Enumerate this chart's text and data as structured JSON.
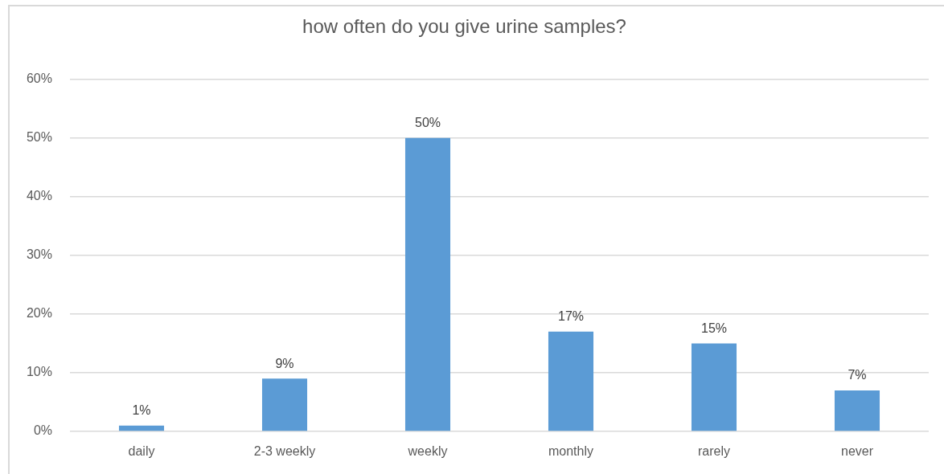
{
  "chart_data": {
    "type": "bar",
    "title": "how often do you give urine samples?",
    "categories": [
      "daily",
      "2-3 weekly",
      "weekly",
      "monthly",
      "rarely",
      "never"
    ],
    "values": [
      1,
      9,
      50,
      17,
      15,
      7
    ],
    "color": "#5b9bd5",
    "value_labels": [
      "1%",
      "9%",
      "50%",
      "17%",
      "15%",
      "7%"
    ],
    "ylim": [
      0,
      60
    ],
    "yticks": [
      {
        "value": 0,
        "label": "0%"
      },
      {
        "value": 10,
        "label": "10%"
      },
      {
        "value": 20,
        "label": "20%"
      },
      {
        "value": 30,
        "label": "30%"
      },
      {
        "value": 40,
        "label": "40%"
      },
      {
        "value": 50,
        "label": "50%"
      },
      {
        "value": 60,
        "label": "60%"
      }
    ],
    "grid": "y"
  }
}
